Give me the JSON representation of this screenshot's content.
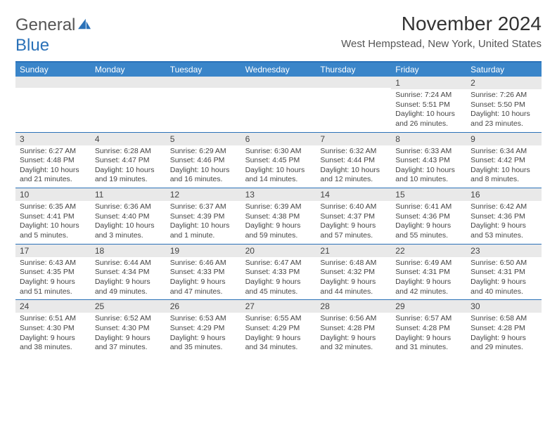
{
  "logo": {
    "word1": "General",
    "word2": "Blue"
  },
  "title": "November 2024",
  "location": "West Hempstead, New York, United States",
  "colors": {
    "header_bg": "#3a85c9",
    "border": "#2a71b8",
    "daynum_bg": "#e9e9e9",
    "text": "#444444",
    "accent_text": "#2a71b8"
  },
  "day_names": [
    "Sunday",
    "Monday",
    "Tuesday",
    "Wednesday",
    "Thursday",
    "Friday",
    "Saturday"
  ],
  "weeks": [
    [
      {
        "n": "",
        "sr": "",
        "ss": "",
        "d1": "",
        "d2": ""
      },
      {
        "n": "",
        "sr": "",
        "ss": "",
        "d1": "",
        "d2": ""
      },
      {
        "n": "",
        "sr": "",
        "ss": "",
        "d1": "",
        "d2": ""
      },
      {
        "n": "",
        "sr": "",
        "ss": "",
        "d1": "",
        "d2": ""
      },
      {
        "n": "",
        "sr": "",
        "ss": "",
        "d1": "",
        "d2": ""
      },
      {
        "n": "1",
        "sr": "Sunrise: 7:24 AM",
        "ss": "Sunset: 5:51 PM",
        "d1": "Daylight: 10 hours",
        "d2": "and 26 minutes."
      },
      {
        "n": "2",
        "sr": "Sunrise: 7:26 AM",
        "ss": "Sunset: 5:50 PM",
        "d1": "Daylight: 10 hours",
        "d2": "and 23 minutes."
      }
    ],
    [
      {
        "n": "3",
        "sr": "Sunrise: 6:27 AM",
        "ss": "Sunset: 4:48 PM",
        "d1": "Daylight: 10 hours",
        "d2": "and 21 minutes."
      },
      {
        "n": "4",
        "sr": "Sunrise: 6:28 AM",
        "ss": "Sunset: 4:47 PM",
        "d1": "Daylight: 10 hours",
        "d2": "and 19 minutes."
      },
      {
        "n": "5",
        "sr": "Sunrise: 6:29 AM",
        "ss": "Sunset: 4:46 PM",
        "d1": "Daylight: 10 hours",
        "d2": "and 16 minutes."
      },
      {
        "n": "6",
        "sr": "Sunrise: 6:30 AM",
        "ss": "Sunset: 4:45 PM",
        "d1": "Daylight: 10 hours",
        "d2": "and 14 minutes."
      },
      {
        "n": "7",
        "sr": "Sunrise: 6:32 AM",
        "ss": "Sunset: 4:44 PM",
        "d1": "Daylight: 10 hours",
        "d2": "and 12 minutes."
      },
      {
        "n": "8",
        "sr": "Sunrise: 6:33 AM",
        "ss": "Sunset: 4:43 PM",
        "d1": "Daylight: 10 hours",
        "d2": "and 10 minutes."
      },
      {
        "n": "9",
        "sr": "Sunrise: 6:34 AM",
        "ss": "Sunset: 4:42 PM",
        "d1": "Daylight: 10 hours",
        "d2": "and 8 minutes."
      }
    ],
    [
      {
        "n": "10",
        "sr": "Sunrise: 6:35 AM",
        "ss": "Sunset: 4:41 PM",
        "d1": "Daylight: 10 hours",
        "d2": "and 5 minutes."
      },
      {
        "n": "11",
        "sr": "Sunrise: 6:36 AM",
        "ss": "Sunset: 4:40 PM",
        "d1": "Daylight: 10 hours",
        "d2": "and 3 minutes."
      },
      {
        "n": "12",
        "sr": "Sunrise: 6:37 AM",
        "ss": "Sunset: 4:39 PM",
        "d1": "Daylight: 10 hours",
        "d2": "and 1 minute."
      },
      {
        "n": "13",
        "sr": "Sunrise: 6:39 AM",
        "ss": "Sunset: 4:38 PM",
        "d1": "Daylight: 9 hours",
        "d2": "and 59 minutes."
      },
      {
        "n": "14",
        "sr": "Sunrise: 6:40 AM",
        "ss": "Sunset: 4:37 PM",
        "d1": "Daylight: 9 hours",
        "d2": "and 57 minutes."
      },
      {
        "n": "15",
        "sr": "Sunrise: 6:41 AM",
        "ss": "Sunset: 4:36 PM",
        "d1": "Daylight: 9 hours",
        "d2": "and 55 minutes."
      },
      {
        "n": "16",
        "sr": "Sunrise: 6:42 AM",
        "ss": "Sunset: 4:36 PM",
        "d1": "Daylight: 9 hours",
        "d2": "and 53 minutes."
      }
    ],
    [
      {
        "n": "17",
        "sr": "Sunrise: 6:43 AM",
        "ss": "Sunset: 4:35 PM",
        "d1": "Daylight: 9 hours",
        "d2": "and 51 minutes."
      },
      {
        "n": "18",
        "sr": "Sunrise: 6:44 AM",
        "ss": "Sunset: 4:34 PM",
        "d1": "Daylight: 9 hours",
        "d2": "and 49 minutes."
      },
      {
        "n": "19",
        "sr": "Sunrise: 6:46 AM",
        "ss": "Sunset: 4:33 PM",
        "d1": "Daylight: 9 hours",
        "d2": "and 47 minutes."
      },
      {
        "n": "20",
        "sr": "Sunrise: 6:47 AM",
        "ss": "Sunset: 4:33 PM",
        "d1": "Daylight: 9 hours",
        "d2": "and 45 minutes."
      },
      {
        "n": "21",
        "sr": "Sunrise: 6:48 AM",
        "ss": "Sunset: 4:32 PM",
        "d1": "Daylight: 9 hours",
        "d2": "and 44 minutes."
      },
      {
        "n": "22",
        "sr": "Sunrise: 6:49 AM",
        "ss": "Sunset: 4:31 PM",
        "d1": "Daylight: 9 hours",
        "d2": "and 42 minutes."
      },
      {
        "n": "23",
        "sr": "Sunrise: 6:50 AM",
        "ss": "Sunset: 4:31 PM",
        "d1": "Daylight: 9 hours",
        "d2": "and 40 minutes."
      }
    ],
    [
      {
        "n": "24",
        "sr": "Sunrise: 6:51 AM",
        "ss": "Sunset: 4:30 PM",
        "d1": "Daylight: 9 hours",
        "d2": "and 38 minutes."
      },
      {
        "n": "25",
        "sr": "Sunrise: 6:52 AM",
        "ss": "Sunset: 4:30 PM",
        "d1": "Daylight: 9 hours",
        "d2": "and 37 minutes."
      },
      {
        "n": "26",
        "sr": "Sunrise: 6:53 AM",
        "ss": "Sunset: 4:29 PM",
        "d1": "Daylight: 9 hours",
        "d2": "and 35 minutes."
      },
      {
        "n": "27",
        "sr": "Sunrise: 6:55 AM",
        "ss": "Sunset: 4:29 PM",
        "d1": "Daylight: 9 hours",
        "d2": "and 34 minutes."
      },
      {
        "n": "28",
        "sr": "Sunrise: 6:56 AM",
        "ss": "Sunset: 4:28 PM",
        "d1": "Daylight: 9 hours",
        "d2": "and 32 minutes."
      },
      {
        "n": "29",
        "sr": "Sunrise: 6:57 AM",
        "ss": "Sunset: 4:28 PM",
        "d1": "Daylight: 9 hours",
        "d2": "and 31 minutes."
      },
      {
        "n": "30",
        "sr": "Sunrise: 6:58 AM",
        "ss": "Sunset: 4:28 PM",
        "d1": "Daylight: 9 hours",
        "d2": "and 29 minutes."
      }
    ]
  ]
}
